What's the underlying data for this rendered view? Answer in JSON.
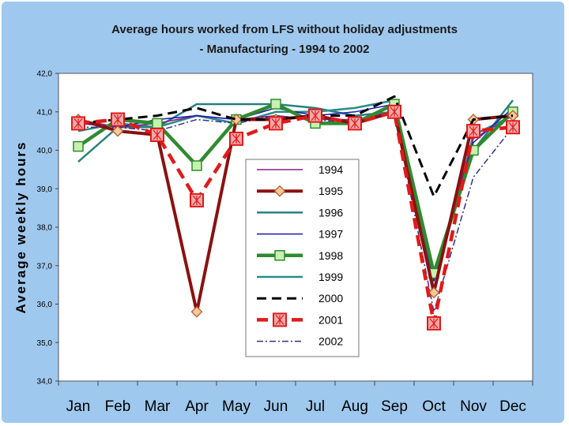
{
  "chart_data": {
    "type": "line",
    "title_line1": "Average hours worked  from LFS without holiday adjustments",
    "title_line2": "- Manufacturing - 1994 to 2002",
    "xlabel": "",
    "ylabel": "Average weekly hours",
    "ylim": [
      34.0,
      42.0
    ],
    "yticks": [
      "34,0",
      "35,0",
      "36,0",
      "37,0",
      "38,0",
      "39,0",
      "40,0",
      "41,0",
      "42,0"
    ],
    "categories": [
      "Jan",
      "Feb",
      "Mar",
      "Apr",
      "May",
      "Jun",
      "Jul",
      "Aug",
      "Sep",
      "Oct",
      "Nov",
      "Dec"
    ],
    "grid": false,
    "legend_position": "center",
    "colors": {
      "background": "#9fc8ee",
      "plot_area": "#ffffff"
    },
    "series": [
      {
        "name": "1994",
        "color": "#8b1a8b",
        "values": [
          40.8,
          40.6,
          40.7,
          40.9,
          40.8,
          40.9,
          40.8,
          40.8,
          41.0,
          36.7,
          40.3,
          40.9
        ]
      },
      {
        "name": "1995",
        "color": "#8b1010",
        "values": [
          40.8,
          40.5,
          40.4,
          35.8,
          40.8,
          40.8,
          40.9,
          40.7,
          41.0,
          36.3,
          40.8,
          40.9
        ]
      },
      {
        "name": "1996",
        "color": "#2a7f7f",
        "values": [
          39.7,
          40.6,
          40.6,
          41.2,
          41.2,
          41.2,
          41.1,
          40.9,
          41.0,
          36.8,
          40.0,
          41.3
        ]
      },
      {
        "name": "1997",
        "color": "#1a1ab4",
        "values": [
          40.7,
          40.6,
          40.8,
          40.9,
          40.8,
          41.1,
          40.9,
          41.0,
          41.2,
          36.6,
          40.2,
          41.1
        ]
      },
      {
        "name": "1998",
        "color": "#2e8b2e",
        "values": [
          40.1,
          40.8,
          40.7,
          39.6,
          40.8,
          41.2,
          40.7,
          40.7,
          41.2,
          36.8,
          40.0,
          41.0
        ]
      },
      {
        "name": "1999",
        "color": "#2a8a8a",
        "values": [
          40.5,
          40.7,
          40.6,
          40.9,
          40.7,
          41.0,
          41.0,
          41.1,
          41.3,
          36.4,
          40.4,
          40.9
        ]
      },
      {
        "name": "2000",
        "color": "#000000",
        "values": [
          40.7,
          40.8,
          40.9,
          41.1,
          40.8,
          40.8,
          40.9,
          40.9,
          41.4,
          38.8,
          40.8,
          40.9
        ]
      },
      {
        "name": "2001",
        "color": "#e01a1a",
        "values": [
          40.7,
          40.8,
          40.4,
          38.7,
          40.3,
          40.7,
          40.9,
          40.7,
          41.0,
          35.5,
          40.5,
          40.6
        ]
      },
      {
        "name": "2002",
        "color": "#30308a",
        "values": [
          40.6,
          40.6,
          40.5,
          40.8,
          40.7,
          40.9,
          40.8,
          40.7,
          41.0,
          35.8,
          39.3,
          40.6
        ]
      }
    ]
  }
}
